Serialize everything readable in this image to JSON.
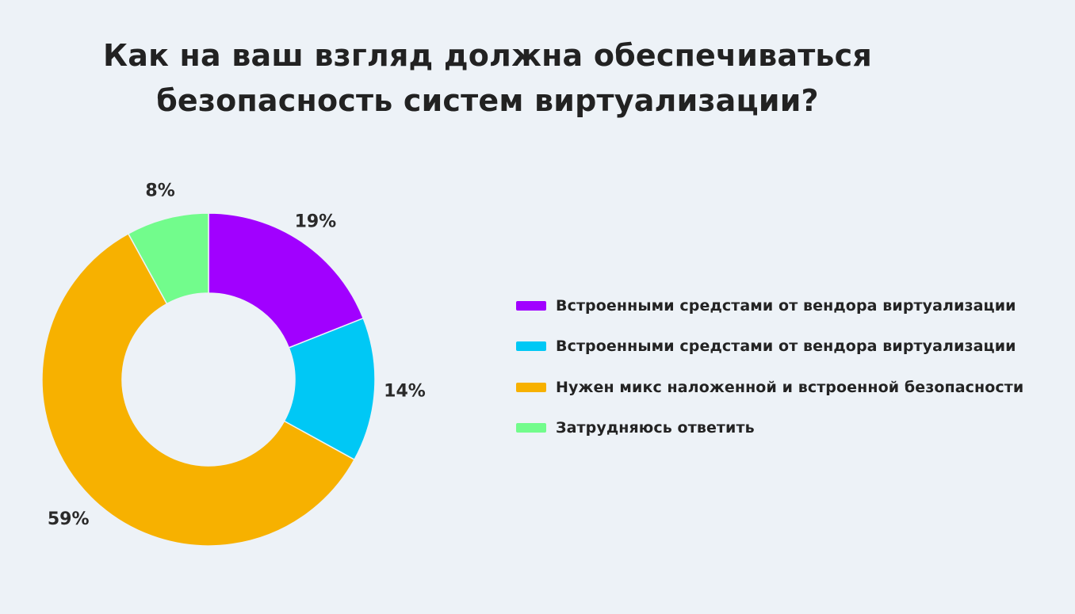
{
  "chart_data": {
    "type": "pie",
    "title": [
      "Как на ваш взгляд должна обеспечиваться",
      "безопасность систем виртуализации?"
    ],
    "categories": [
      "Встроенными средстами от вендора виртуализации",
      "Встроенными средстами от вендора виртуализации",
      "Нужен микс наложенной и встроенной безопасности",
      "Затрудняюсь ответить"
    ],
    "values": [
      19,
      14,
      59,
      8
    ],
    "value_labels": [
      "19%",
      "14%",
      "59%",
      "8%"
    ],
    "colors": [
      "#A100FF",
      "#00C8F5",
      "#F7B100",
      "#72FC8C"
    ],
    "donut": true,
    "legend_position": "right"
  }
}
